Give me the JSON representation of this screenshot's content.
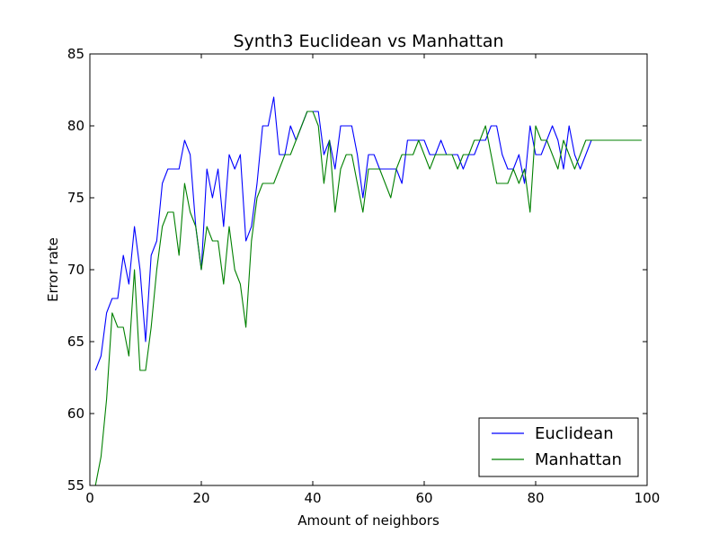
{
  "chart_data": {
    "type": "line",
    "title": "Synth3 Euclidean vs Manhattan",
    "xlabel": "Amount of neighbors",
    "ylabel": "Error rate",
    "xlim": [
      0,
      100
    ],
    "ylim": [
      55,
      85
    ],
    "xticks": [
      0,
      20,
      40,
      60,
      80,
      100
    ],
    "yticks": [
      55,
      60,
      65,
      70,
      75,
      80,
      85
    ],
    "xtick_labels": [
      "0",
      "20",
      "40",
      "60",
      "80",
      "100"
    ],
    "ytick_labels": [
      "55",
      "60",
      "65",
      "70",
      "75",
      "80",
      "85"
    ],
    "grid": false,
    "legend_position": "lower-right",
    "x": [
      1,
      2,
      3,
      4,
      5,
      6,
      7,
      8,
      9,
      10,
      11,
      12,
      13,
      14,
      15,
      16,
      17,
      18,
      19,
      20,
      21,
      22,
      23,
      24,
      25,
      26,
      27,
      28,
      29,
      30,
      31,
      32,
      33,
      34,
      35,
      36,
      37,
      38,
      39,
      40,
      41,
      42,
      43,
      44,
      45,
      46,
      47,
      48,
      49,
      50,
      51,
      52,
      53,
      54,
      55,
      56,
      57,
      58,
      59,
      60,
      61,
      62,
      63,
      64,
      65,
      66,
      67,
      68,
      69,
      70,
      71,
      72,
      73,
      74,
      75,
      76,
      77,
      78,
      79,
      80,
      81,
      82,
      83,
      84,
      85,
      86,
      87,
      88,
      89,
      90,
      91,
      92,
      93,
      94,
      95,
      96,
      97,
      98,
      99
    ],
    "series": [
      {
        "name": "Euclidean",
        "color": "#0000ff",
        "values": [
          63,
          64,
          67,
          68,
          68,
          71,
          69,
          73,
          70,
          65,
          71,
          72,
          76,
          77,
          77,
          77,
          79,
          78,
          73,
          70,
          77,
          75,
          77,
          73,
          78,
          77,
          78,
          72,
          73,
          76,
          80,
          80,
          82,
          78,
          78,
          80,
          79,
          80,
          81,
          81,
          81,
          78,
          79,
          77,
          80,
          80,
          80,
          78,
          75,
          78,
          78,
          77,
          77,
          77,
          77,
          76,
          79,
          79,
          79,
          79,
          78,
          78,
          79,
          78,
          78,
          78,
          77,
          78,
          78,
          79,
          79,
          80,
          80,
          78,
          77,
          77,
          78,
          76,
          80,
          78,
          78,
          79,
          80,
          79,
          77,
          80,
          78,
          77,
          78,
          79,
          79,
          79,
          79,
          79,
          79,
          79,
          79,
          79,
          79
        ]
      },
      {
        "name": "Manhattan",
        "color": "#008000",
        "values": [
          55,
          57,
          61,
          67,
          66,
          66,
          64,
          70,
          63,
          63,
          66,
          70,
          73,
          74,
          74,
          71,
          76,
          74,
          73,
          70,
          73,
          72,
          72,
          69,
          73,
          70,
          69,
          66,
          72,
          75,
          76,
          76,
          76,
          77,
          78,
          78,
          79,
          80,
          81,
          81,
          80,
          76,
          79,
          74,
          77,
          78,
          78,
          76,
          74,
          77,
          77,
          77,
          76,
          75,
          77,
          78,
          78,
          78,
          79,
          78,
          77,
          78,
          78,
          78,
          78,
          77,
          78,
          78,
          79,
          79,
          80,
          78,
          76,
          76,
          76,
          77,
          76,
          77,
          74,
          80,
          79,
          79,
          78,
          77,
          79,
          78,
          77,
          78,
          79,
          79,
          79,
          79,
          79,
          79,
          79,
          79,
          79,
          79,
          79
        ]
      }
    ]
  }
}
